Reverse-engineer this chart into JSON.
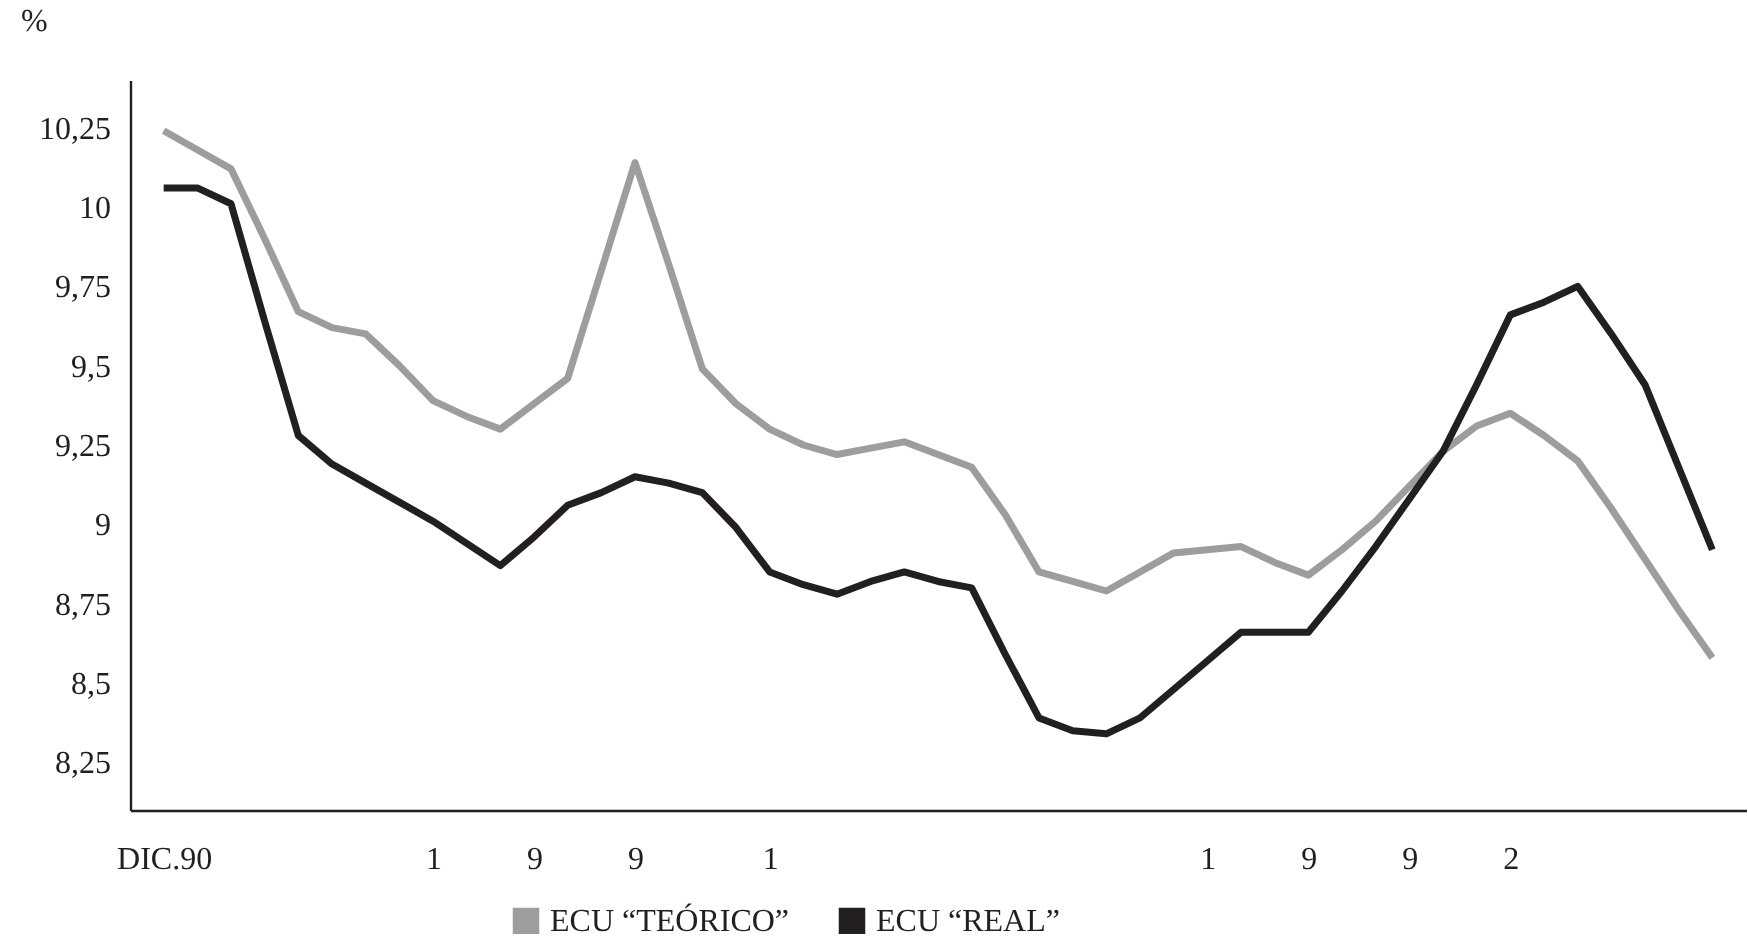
{
  "chart_data": {
    "type": "line",
    "ylabel": "%",
    "categories": [
      "DIC.90",
      null,
      null,
      null,
      null,
      null,
      null,
      null,
      "1",
      null,
      null,
      "9",
      null,
      null,
      "9",
      null,
      null,
      null,
      "1",
      null,
      null,
      null,
      null,
      null,
      null,
      null,
      null,
      null,
      null,
      null,
      null,
      "1",
      null,
      null,
      "9",
      null,
      null,
      "9",
      null,
      null,
      "2",
      null,
      null,
      null,
      null,
      null,
      null
    ],
    "series": [
      {
        "name": "ECU “TEÓRICO”",
        "color": "#9d9d9f",
        "values": [
          10.24,
          10.18,
          10.12,
          9.9,
          9.67,
          9.62,
          9.6,
          9.5,
          9.39,
          9.34,
          9.3,
          9.38,
          9.46,
          9.8,
          10.14,
          9.82,
          9.49,
          9.38,
          9.3,
          9.25,
          9.22,
          9.24,
          9.26,
          9.22,
          9.18,
          9.03,
          8.85,
          8.82,
          8.79,
          8.85,
          8.91,
          8.92,
          8.93,
          8.88,
          8.84,
          8.92,
          9.01,
          9.12,
          9.23,
          9.31,
          9.35,
          9.28,
          9.2,
          9.05,
          8.89,
          8.73,
          8.58
        ]
      },
      {
        "name": "ECU “REAL”",
        "color": "#231f20",
        "values": [
          10.06,
          10.06,
          10.01,
          9.64,
          9.28,
          9.19,
          9.13,
          9.07,
          9.01,
          8.94,
          8.87,
          8.96,
          9.06,
          9.1,
          9.15,
          9.13,
          9.1,
          8.99,
          8.85,
          8.81,
          8.78,
          8.82,
          8.85,
          8.82,
          8.8,
          8.59,
          8.39,
          8.35,
          8.34,
          8.39,
          8.48,
          8.57,
          8.66,
          8.66,
          8.66,
          8.79,
          8.93,
          9.08,
          9.23,
          9.44,
          9.66,
          9.7,
          9.75,
          9.6,
          9.44,
          9.18,
          8.92
        ]
      }
    ],
    "ylim": [
      8.1,
      10.4
    ],
    "yticks": [
      {
        "value": 8.25,
        "label": "8,25"
      },
      {
        "value": 8.5,
        "label": "8,5"
      },
      {
        "value": 8.75,
        "label": "8,75"
      },
      {
        "value": 9,
        "label": "9"
      },
      {
        "value": 9.25,
        "label": "9,25"
      },
      {
        "value": 9.5,
        "label": "9,5"
      },
      {
        "value": 9.75,
        "label": "9,75"
      },
      {
        "value": 10,
        "label": "10"
      },
      {
        "value": 10.25,
        "label": "10,25"
      }
    ],
    "grid": false,
    "legend": "bottom",
    "marker": "none",
    "line_style": "solid"
  }
}
